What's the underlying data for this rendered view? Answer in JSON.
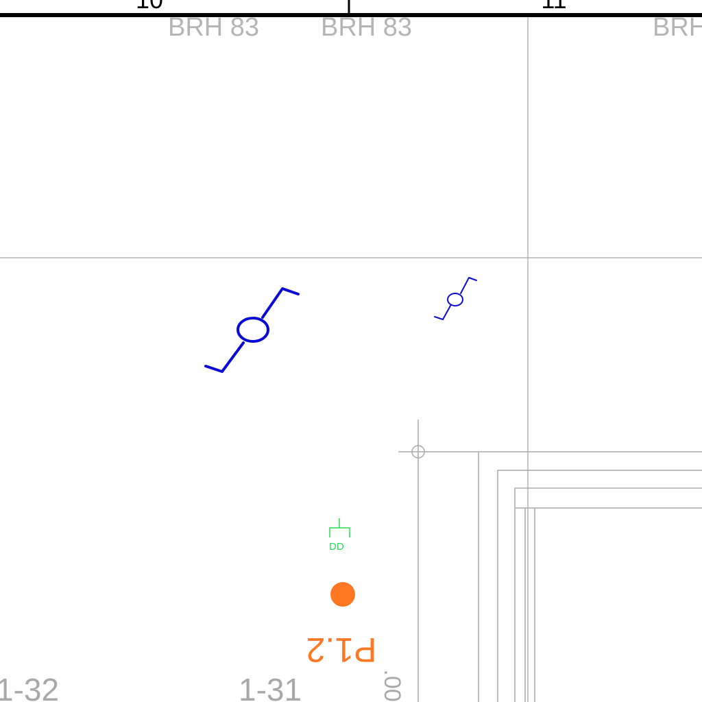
{
  "column_marks": {
    "left": "10",
    "right": "11"
  },
  "grid_labels": [
    "BRH 83",
    "BRH 83",
    "BRH"
  ],
  "device": {
    "label": "DD",
    "color": "#22dd55"
  },
  "point": {
    "label": "P1.2",
    "color": "#ff7722"
  },
  "room_labels": [
    "1-32",
    "1-31"
  ],
  "dimension": {
    "text": ".00"
  },
  "colors": {
    "frame": "#000000",
    "grid": "#b4b4b4",
    "fixture": "#0a0ad6",
    "wall": "#a8a8a8"
  }
}
